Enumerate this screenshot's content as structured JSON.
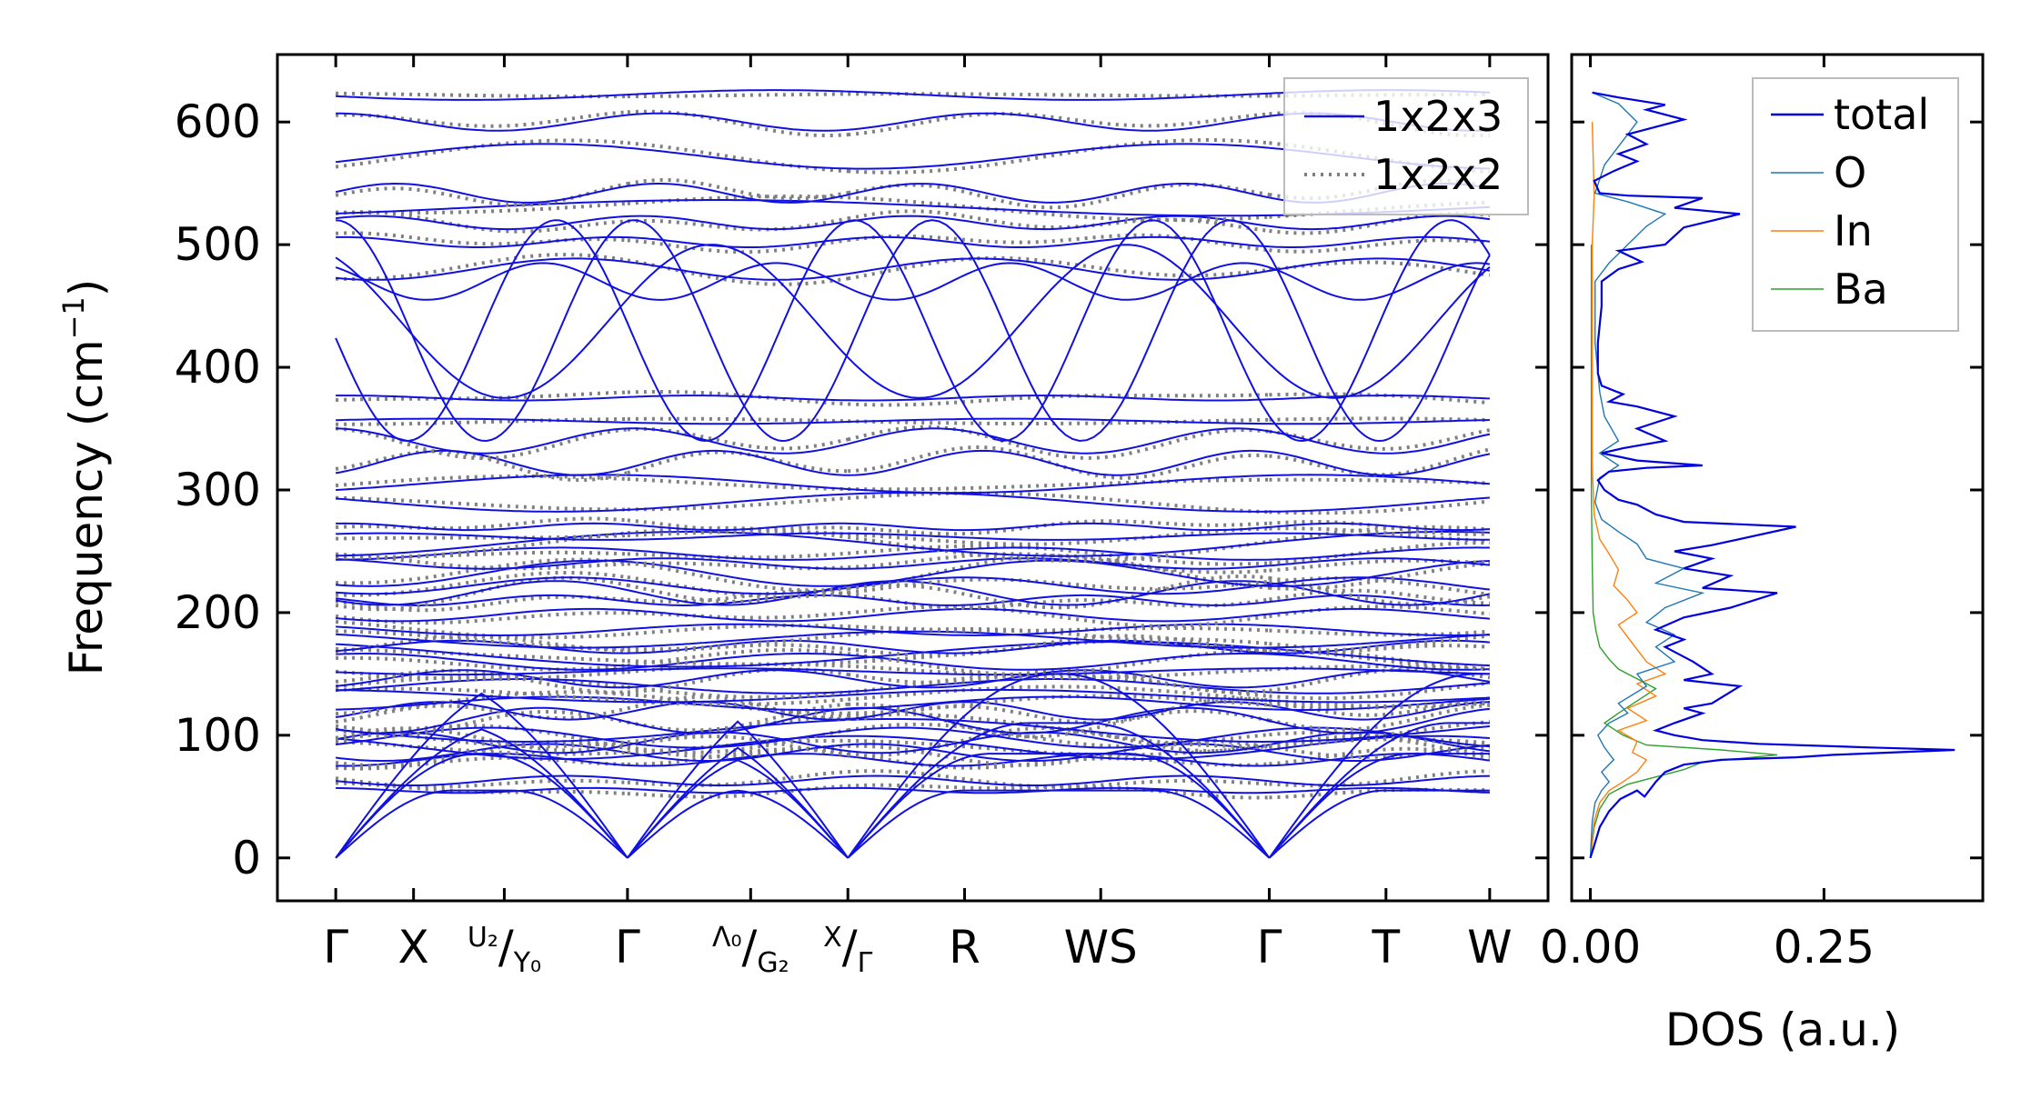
{
  "chart_data": [
    {
      "type": "line",
      "panel": "phonon-dispersion",
      "ylabel": "Frequency (cm⁻¹)",
      "ylabel_base": "Frequency (cm",
      "ylabel_sup": "−1",
      "ylabel_close": ")",
      "ylim": [
        -35,
        655
      ],
      "yticks": [
        0,
        100,
        200,
        300,
        400,
        500,
        600
      ],
      "xticks": [
        {
          "label": "Γ",
          "k": 0.0
        },
        {
          "label": "X",
          "k": 0.6
        },
        {
          "label": "U₂/Y₀",
          "k": 1.3,
          "top": "U₂",
          "bottom": "Y₀"
        },
        {
          "label": "Γ",
          "k": 2.25
        },
        {
          "label": "Λ₀/G₂",
          "k": 3.2,
          "top": "Λ₀",
          "bottom": "G₂"
        },
        {
          "label": "X/Γ",
          "k": 3.95,
          "top": "X",
          "bottom": "Γ"
        },
        {
          "label": "R",
          "k": 4.85
        },
        {
          "label": "WS",
          "k": 5.9,
          "first": "W",
          "second": "S"
        },
        {
          "label": "Γ",
          "k": 7.2
        },
        {
          "label": "T",
          "k": 8.1
        },
        {
          "label": "W",
          "k": 8.9
        }
      ],
      "xlim": [
        -0.45,
        9.35
      ],
      "segment_breaks": [
        2.25,
        3.95,
        7.2
      ],
      "flat_branch_levels": [
        55,
        63,
        80,
        86,
        90,
        94,
        98,
        104,
        112,
        120,
        126,
        132,
        140,
        146,
        152,
        160,
        166,
        172,
        178,
        186,
        198,
        210,
        216,
        222,
        232,
        240,
        248,
        256,
        262,
        270,
        290,
        305,
        322,
        340,
        356,
        375,
        480,
        502,
        518,
        530,
        542,
        572,
        600,
        622
      ],
      "legend": {
        "position": "top-right",
        "entries": [
          {
            "name": "1x2x3",
            "style": "solid",
            "color": "#0000ee"
          },
          {
            "name": "1x2x2",
            "style": "dotted",
            "color": "#808080"
          }
        ]
      },
      "series": [
        {
          "name": "1x2x3",
          "color": "#1010e0"
        },
        {
          "name": "1x2x2",
          "color": "#808080"
        }
      ]
    },
    {
      "type": "line",
      "panel": "density-of-states",
      "xlabel": "DOS (a.u.)",
      "xlim": [
        -0.02,
        0.42
      ],
      "xticks": [
        0.0,
        0.25
      ],
      "xtick_labels": [
        "0.00",
        "0.25"
      ],
      "ylim": [
        -35,
        655
      ],
      "legend": {
        "position": "top-right",
        "entries": [
          {
            "name": "total",
            "color": "#0000dd"
          },
          {
            "name": "O",
            "color": "#1f77b4"
          },
          {
            "name": "In",
            "color": "#ff7f0e"
          },
          {
            "name": "Ba",
            "color": "#2ca02c"
          }
        ]
      },
      "series": [
        {
          "name": "total",
          "color": "#0000dd",
          "points": [
            [
              0,
              0
            ],
            [
              0.004,
              10
            ],
            [
              0.01,
              25
            ],
            [
              0.02,
              38
            ],
            [
              0.032,
              48
            ],
            [
              0.05,
              55
            ],
            [
              0.058,
              50
            ],
            [
              0.07,
              62
            ],
            [
              0.08,
              70
            ],
            [
              0.1,
              76
            ],
            [
              0.14,
              80
            ],
            [
              0.22,
              82
            ],
            [
              0.26,
              84
            ],
            [
              0.39,
              88
            ],
            [
              0.3,
              90
            ],
            [
              0.18,
              93
            ],
            [
              0.12,
              96
            ],
            [
              0.09,
              100
            ],
            [
              0.07,
              104
            ],
            [
              0.09,
              110
            ],
            [
              0.12,
              118
            ],
            [
              0.1,
              122
            ],
            [
              0.13,
              126
            ],
            [
              0.16,
              140
            ],
            [
              0.1,
              145
            ],
            [
              0.13,
              150
            ],
            [
              0.11,
              160
            ],
            [
              0.08,
              172
            ],
            [
              0.1,
              178
            ],
            [
              0.07,
              186
            ],
            [
              0.1,
              196
            ],
            [
              0.15,
              204
            ],
            [
              0.2,
              216
            ],
            [
              0.12,
              220
            ],
            [
              0.15,
              230
            ],
            [
              0.1,
              236
            ],
            [
              0.13,
              244
            ],
            [
              0.09,
              250
            ],
            [
              0.13,
              255
            ],
            [
              0.22,
              270
            ],
            [
              0.1,
              274
            ],
            [
              0.07,
              280
            ],
            [
              0.05,
              288
            ],
            [
              0.03,
              292
            ],
            [
              0.015,
              300
            ],
            [
              0.008,
              308
            ],
            [
              0.02,
              315
            ],
            [
              0.06,
              318
            ],
            [
              0.12,
              320
            ],
            [
              0.05,
              324
            ],
            [
              0.012,
              330
            ],
            [
              0.035,
              334
            ],
            [
              0.08,
              340
            ],
            [
              0.05,
              350
            ],
            [
              0.09,
              360
            ],
            [
              0.05,
              368
            ],
            [
              0.02,
              372
            ],
            [
              0.035,
              378
            ],
            [
              0.012,
              385
            ],
            [
              0.008,
              395
            ],
            [
              0.008,
              420
            ],
            [
              0.012,
              450
            ],
            [
              0.012,
              470
            ],
            [
              0.03,
              480
            ],
            [
              0.055,
              486
            ],
            [
              0.03,
              495
            ],
            [
              0.08,
              500
            ],
            [
              0.1,
              514
            ],
            [
              0.16,
              525
            ],
            [
              0.09,
              530
            ],
            [
              0.12,
              538
            ],
            [
              0.04,
              540
            ],
            [
              0.01,
              542
            ],
            [
              0.004,
              552
            ],
            [
              0.025,
              560
            ],
            [
              0.05,
              568
            ],
            [
              0.03,
              574
            ],
            [
              0.06,
              582
            ],
            [
              0.04,
              590
            ],
            [
              0.1,
              602
            ],
            [
              0.06,
              610
            ],
            [
              0.08,
              614
            ],
            [
              0.03,
              620
            ],
            [
              0.002,
              624
            ]
          ]
        },
        {
          "name": "O",
          "color": "#1f77b4",
          "points": [
            [
              0,
              0
            ],
            [
              0.002,
              30
            ],
            [
              0.005,
              45
            ],
            [
              0.012,
              55
            ],
            [
              0.02,
              62
            ],
            [
              0.012,
              70
            ],
            [
              0.025,
              80
            ],
            [
              0.015,
              90
            ],
            [
              0.008,
              100
            ],
            [
              0.02,
              110
            ],
            [
              0.04,
              118
            ],
            [
              0.03,
              126
            ],
            [
              0.06,
              140
            ],
            [
              0.05,
              150
            ],
            [
              0.09,
              160
            ],
            [
              0.07,
              172
            ],
            [
              0.09,
              182
            ],
            [
              0.06,
              192
            ],
            [
              0.08,
              204
            ],
            [
              0.12,
              216
            ],
            [
              0.07,
              224
            ],
            [
              0.1,
              236
            ],
            [
              0.06,
              244
            ],
            [
              0.05,
              256
            ],
            [
              0.03,
              266
            ],
            [
              0.012,
              276
            ],
            [
              0.005,
              290
            ],
            [
              0.01,
              310
            ],
            [
              0.03,
              320
            ],
            [
              0.01,
              330
            ],
            [
              0.03,
              340
            ],
            [
              0.015,
              360
            ],
            [
              0.01,
              380
            ],
            [
              0.005,
              420
            ],
            [
              0.005,
              470
            ],
            [
              0.02,
              485
            ],
            [
              0.04,
              500
            ],
            [
              0.06,
              515
            ],
            [
              0.08,
              525
            ],
            [
              0.04,
              535
            ],
            [
              0.005,
              542
            ],
            [
              0.015,
              565
            ],
            [
              0.03,
              580
            ],
            [
              0.05,
              600
            ],
            [
              0.03,
              615
            ],
            [
              0.002,
              624
            ]
          ]
        },
        {
          "name": "In",
          "color": "#ff7f0e",
          "points": [
            [
              0,
              0
            ],
            [
              0.004,
              30
            ],
            [
              0.01,
              45
            ],
            [
              0.02,
              55
            ],
            [
              0.035,
              62
            ],
            [
              0.05,
              70
            ],
            [
              0.06,
              80
            ],
            [
              0.045,
              86
            ],
            [
              0.05,
              95
            ],
            [
              0.03,
              104
            ],
            [
              0.06,
              112
            ],
            [
              0.04,
              122
            ],
            [
              0.07,
              132
            ],
            [
              0.05,
              142
            ],
            [
              0.08,
              150
            ],
            [
              0.06,
              160
            ],
            [
              0.05,
              170
            ],
            [
              0.04,
              180
            ],
            [
              0.03,
              190
            ],
            [
              0.05,
              200
            ],
            [
              0.04,
              210
            ],
            [
              0.025,
              222
            ],
            [
              0.03,
              235
            ],
            [
              0.02,
              248
            ],
            [
              0.01,
              260
            ],
            [
              0.004,
              280
            ],
            [
              0.002,
              320
            ],
            [
              0.002,
              400
            ],
            [
              0.002,
              500
            ],
            [
              0.004,
              540
            ],
            [
              0.002,
              600
            ]
          ]
        },
        {
          "name": "Ba",
          "color": "#2ca02c",
          "points": [
            [
              0,
              0
            ],
            [
              0.004,
              25
            ],
            [
              0.01,
              40
            ],
            [
              0.02,
              52
            ],
            [
              0.04,
              60
            ],
            [
              0.07,
              66
            ],
            [
              0.1,
              72
            ],
            [
              0.12,
              78
            ],
            [
              0.2,
              84
            ],
            [
              0.14,
              88
            ],
            [
              0.06,
              92
            ],
            [
              0.035,
              100
            ],
            [
              0.015,
              110
            ],
            [
              0.03,
              118
            ],
            [
              0.05,
              128
            ],
            [
              0.07,
              138
            ],
            [
              0.05,
              146
            ],
            [
              0.03,
              154
            ],
            [
              0.02,
              162
            ],
            [
              0.01,
              172
            ],
            [
              0.006,
              185
            ],
            [
              0.003,
              200
            ],
            [
              0.002,
              240
            ],
            [
              0.001,
              300
            ],
            [
              0.001,
              500
            ]
          ]
        }
      ]
    }
  ]
}
